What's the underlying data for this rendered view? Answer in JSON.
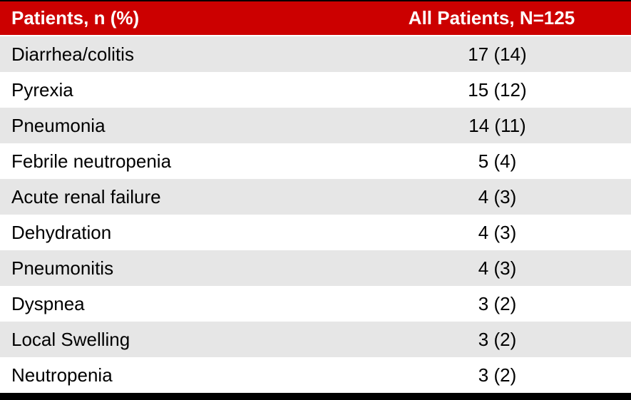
{
  "table": {
    "headers": [
      "Patients, n (%)",
      "All Patients, N=125"
    ],
    "rows": [
      [
        "Diarrhea/colitis",
        "17 (14)"
      ],
      [
        "Pyrexia",
        "15 (12)"
      ],
      [
        "Pneumonia",
        "14 (11)"
      ],
      [
        "Febrile neutropenia",
        "5 (4)"
      ],
      [
        "Acute renal failure",
        "4 (3)"
      ],
      [
        "Dehydration",
        "4 (3)"
      ],
      [
        "Pneumonitis",
        "4 (3)"
      ],
      [
        "Dyspnea",
        "3 (2)"
      ],
      [
        "Local Swelling",
        "3 (2)"
      ],
      [
        "Neutropenia",
        "3 (2)"
      ]
    ]
  },
  "colors": {
    "header_bg": "#cc0000",
    "header_text": "#ffffff",
    "row_shaded": "#e6e6e6",
    "row_plain": "#ffffff",
    "rule": "#000000"
  }
}
